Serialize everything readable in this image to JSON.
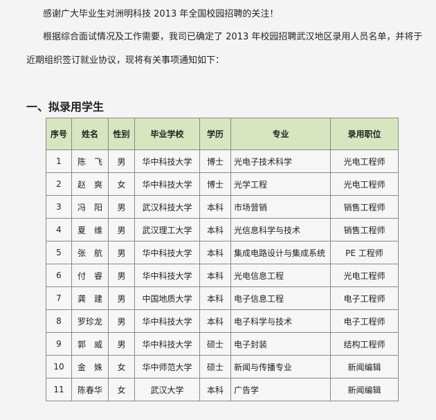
{
  "paragraphs": [
    "感谢广大毕业生对洲明科技 2013 年全国校园招聘的关注！",
    "根据综合面试情况及工作需要，我司已确定了 2013 年校园招聘武汉地区录用人员名单，并将于",
    "近期组织签订就业协议，现将有关事项通知如下："
  ],
  "section_title": "一、拟录用学生",
  "table": {
    "headers": [
      "序号",
      "姓名",
      "性别",
      "毕业学校",
      "学历",
      "专业",
      "录用职位"
    ],
    "rows": [
      [
        "1",
        "陈　飞",
        "男",
        "华中科技大学",
        "博士",
        "光电子技术科学",
        "光电工程师"
      ],
      [
        "2",
        "赵　爽",
        "女",
        "华中科技大学",
        "博士",
        "光学工程",
        "光电工程师"
      ],
      [
        "3",
        "冯　阳",
        "男",
        "武汉科技大学",
        "本科",
        "市场营销",
        "销售工程师"
      ],
      [
        "4",
        "夏　维",
        "男",
        "武汉理工大学",
        "本科",
        "光信息科学与技术",
        "销售工程师"
      ],
      [
        "5",
        "张　航",
        "男",
        "华中科技大学",
        "本科",
        "集成电路设计与集成系统",
        "PE 工程师"
      ],
      [
        "6",
        "付　睿",
        "男",
        "华中科技大学",
        "本科",
        "光电信息工程",
        "光电工程师"
      ],
      [
        "7",
        "龚　建",
        "男",
        "中国地质大学",
        "本科",
        "电子信息工程",
        "电子工程师"
      ],
      [
        "8",
        "罗珍龙",
        "男",
        "华中科技大学",
        "本科",
        "电子科学与技术",
        "电子工程师"
      ],
      [
        "9",
        "郭　威",
        "男",
        "华中科技大学",
        "硕士",
        "电子封装",
        "结构工程师"
      ],
      [
        "10",
        "金　姝",
        "女",
        "华中师范大学",
        "硕士",
        "新闻与传播专业",
        "新闻编辑"
      ],
      [
        "11",
        "陈春华",
        "女",
        "武汉大学",
        "本科",
        "广告学",
        "新闻编辑"
      ]
    ]
  },
  "colors": {
    "header_bg": "#d8e6c0",
    "border": "#888888"
  }
}
